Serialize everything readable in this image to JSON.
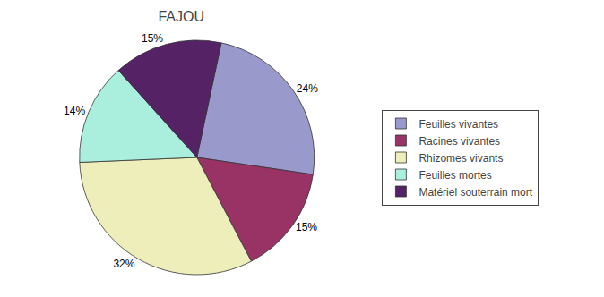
{
  "chart_data": {
    "type": "pie",
    "title": "FAJOU",
    "categories": [
      "Feuilles vivantes",
      "Racines vivantes",
      "Rhizomes vivants",
      "Feuilles mortes",
      "Matériel souterrain mort"
    ],
    "values": [
      24,
      15,
      32,
      14,
      15
    ],
    "value_labels": [
      "24%",
      "15%",
      "32%",
      "14%",
      "15%"
    ],
    "colors": [
      "#9999cc",
      "#993366",
      "#eeeebb",
      "#aaeedd",
      "#552266"
    ],
    "data_labels": true,
    "legend": "right"
  }
}
